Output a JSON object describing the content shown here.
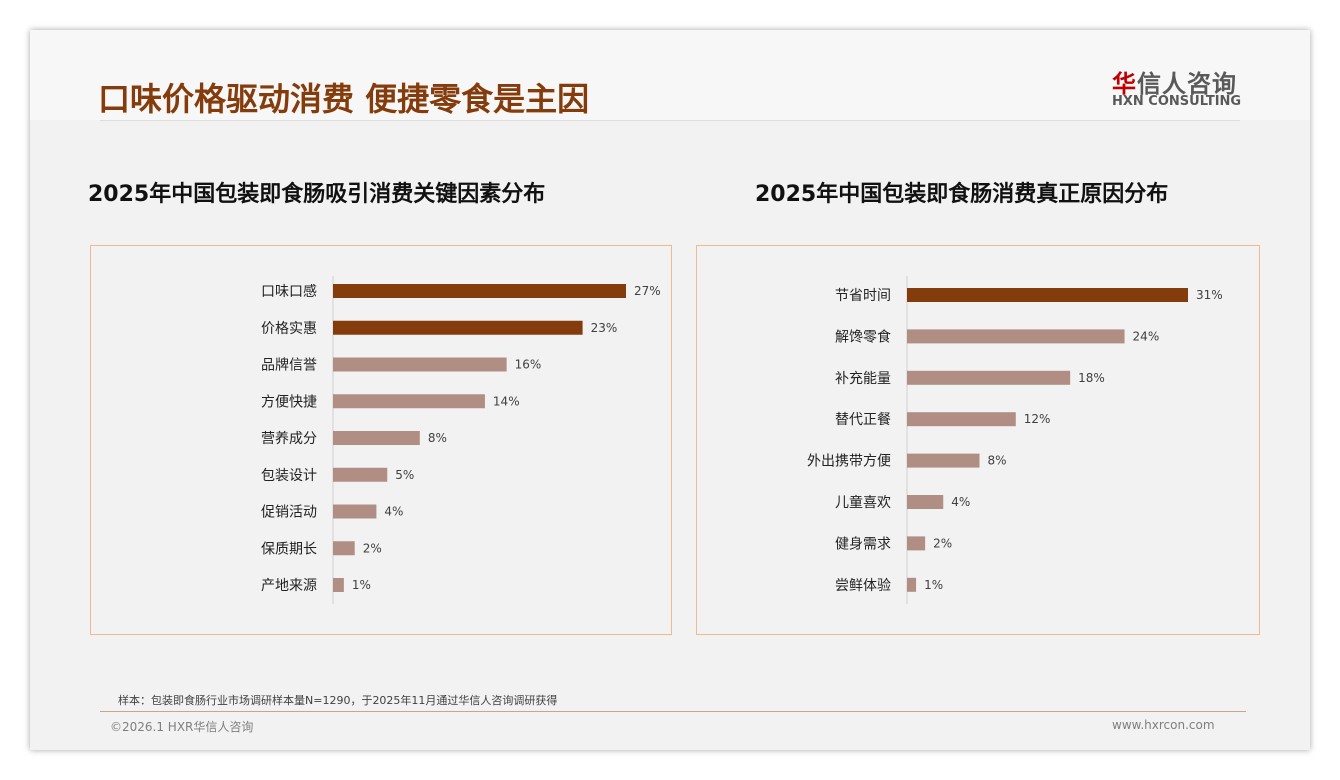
{
  "header": {
    "title": "口味价格驱动消费 便捷零食是主因",
    "logo_cn_red": "华",
    "logo_cn": "信人咨询",
    "logo_en": "HXN CONSULTING"
  },
  "colors": {
    "highlight": "#843c0c",
    "normal": "#b08e84",
    "axis": "#d0d0d0"
  },
  "chart_data": [
    {
      "type": "bar",
      "orientation": "horizontal",
      "title": "2025年中国包装即食肠吸引消费关键因素分布",
      "categories": [
        "口味口感",
        "价格实惠",
        "品牌信誉",
        "方便快捷",
        "营养成分",
        "包装设计",
        "促销活动",
        "保质期长",
        "产地来源"
      ],
      "values": [
        27,
        23,
        16,
        14,
        8,
        5,
        4,
        2,
        1
      ],
      "labels": [
        "27%",
        "23%",
        "16%",
        "14%",
        "8%",
        "5%",
        "4%",
        "2%",
        "1%"
      ],
      "highlight_count": 2,
      "xlim": [
        0,
        27
      ]
    },
    {
      "type": "bar",
      "orientation": "horizontal",
      "title": "2025年中国包装即食肠消费真正原因分布",
      "categories": [
        "节省时间",
        "解馋零食",
        "补充能量",
        "替代正餐",
        "外出携带方便",
        "儿童喜欢",
        "健身需求",
        "尝鲜体验"
      ],
      "values": [
        31,
        24,
        18,
        12,
        8,
        4,
        2,
        1
      ],
      "labels": [
        "31%",
        "24%",
        "18%",
        "12%",
        "8%",
        "4%",
        "2%",
        "1%"
      ],
      "highlight_count": 1,
      "xlim": [
        0,
        31
      ]
    }
  ],
  "footer": {
    "note": "样本：包装即食肠行业市场调研样本量N=1290，于2025年11月通过华信人咨询调研获得",
    "copyright": "©2026.1 HXR华信人咨询",
    "url": "www.hxrcon.com"
  }
}
